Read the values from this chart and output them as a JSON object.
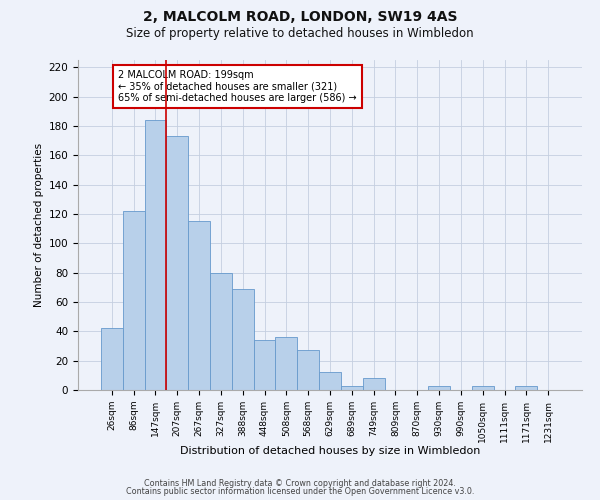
{
  "title": "2, MALCOLM ROAD, LONDON, SW19 4AS",
  "subtitle": "Size of property relative to detached houses in Wimbledon",
  "xlabel": "Distribution of detached houses by size in Wimbledon",
  "ylabel": "Number of detached properties",
  "bar_labels": [
    "26sqm",
    "86sqm",
    "147sqm",
    "207sqm",
    "267sqm",
    "327sqm",
    "388sqm",
    "448sqm",
    "508sqm",
    "568sqm",
    "629sqm",
    "689sqm",
    "749sqm",
    "809sqm",
    "870sqm",
    "930sqm",
    "990sqm",
    "1050sqm",
    "1111sqm",
    "1171sqm",
    "1231sqm"
  ],
  "bar_values": [
    42,
    122,
    184,
    173,
    115,
    80,
    69,
    34,
    36,
    27,
    12,
    3,
    8,
    0,
    0,
    3,
    0,
    3,
    0,
    3,
    0
  ],
  "bar_color": "#b8d0ea",
  "bar_edge_color": "#6699cc",
  "bg_color": "#eef2fa",
  "grid_color": "#c5cfe0",
  "vline_position": 2.5,
  "vline_color": "#cc0000",
  "annotation_title": "2 MALCOLM ROAD: 199sqm",
  "annotation_line1": "← 35% of detached houses are smaller (321)",
  "annotation_line2": "65% of semi-detached houses are larger (586) →",
  "ylim": [
    0,
    225
  ],
  "yticks": [
    0,
    20,
    40,
    60,
    80,
    100,
    120,
    140,
    160,
    180,
    200,
    220
  ],
  "footer1": "Contains HM Land Registry data © Crown copyright and database right 2024.",
  "footer2": "Contains public sector information licensed under the Open Government Licence v3.0.",
  "figsize": [
    6.0,
    5.0
  ],
  "dpi": 100
}
